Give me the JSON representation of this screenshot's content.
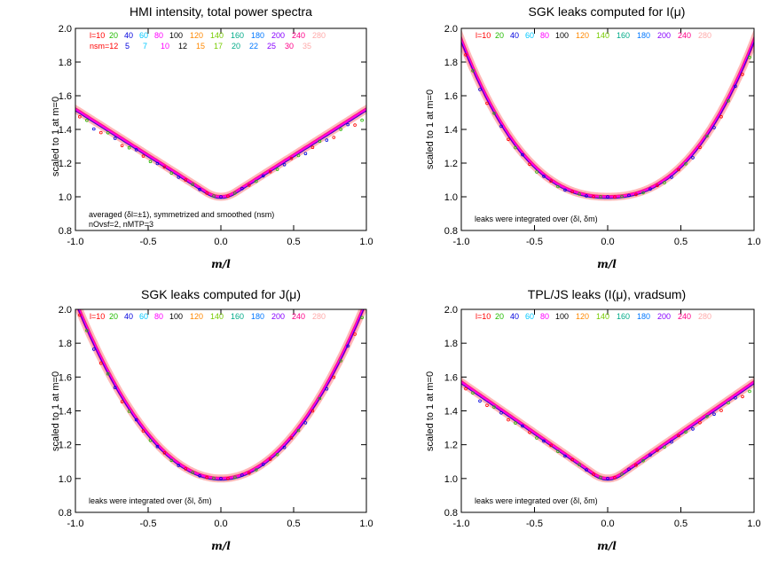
{
  "palette": {
    "l10": "#ff0000",
    "l20": "#22bb00",
    "l40": "#0000dd",
    "l60": "#00c8ff",
    "l80": "#ff00ff",
    "l100": "#000000",
    "l120": "#ff8800",
    "l140": "#77cc00",
    "l160": "#00aa88",
    "l180": "#0077ff",
    "l200": "#8800ff",
    "l240": "#ff0088",
    "l280": "#ffaaaa"
  },
  "chart_data": [
    {
      "type": "scatter",
      "title": "HMI intensity, total power spectra",
      "xlabel": "m/l",
      "ylabel": "scaled to 1 at m=0",
      "xlim": [
        -1.0,
        1.0
      ],
      "ylim": [
        0.8,
        2.0
      ],
      "xticks": [
        "-1.0",
        "-0.5",
        "0.0",
        "0.5",
        "1.0"
      ],
      "yticks": [
        "0.8",
        "1.0",
        "1.2",
        "1.4",
        "1.6",
        "1.8",
        "2.0"
      ],
      "legend_l_label": "l=10",
      "legend_l": [
        "20",
        "40",
        "60",
        "80",
        "100",
        "120",
        "140",
        "160",
        "180",
        "200",
        "240",
        "280"
      ],
      "legend_nsm_label": "nsm=12",
      "legend_nsm": [
        "5",
        "7",
        "10",
        "12",
        "15",
        "17",
        "20",
        "22",
        "25",
        "30",
        "35"
      ],
      "annotations": [
        "averaged (δl=±1), symmetrized and smoothed (nsm)",
        "nOvsf=2, nMTP=3"
      ],
      "curve": {
        "shape": "v",
        "edge_value": 1.52,
        "center_value": 1.0
      }
    },
    {
      "type": "scatter",
      "title": "SGK leaks computed for I(μ)",
      "xlabel": "m/l",
      "ylabel": "scaled to 1 at m=0",
      "xlim": [
        -1.0,
        1.0
      ],
      "ylim": [
        0.8,
        2.0
      ],
      "xticks": [
        "-1.0",
        "-0.5",
        "0.0",
        "0.5",
        "1.0"
      ],
      "yticks": [
        "0.8",
        "1.0",
        "1.2",
        "1.4",
        "1.6",
        "1.8",
        "2.0"
      ],
      "legend_l_label": "l=10",
      "legend_l": [
        "20",
        "40",
        "60",
        "80",
        "100",
        "120",
        "140",
        "160",
        "180",
        "200",
        "240",
        "280"
      ],
      "annotations": [
        "leaks were integrated over (δl, δm)"
      ],
      "curve": {
        "shape": "u",
        "edge_value": 1.93,
        "center_value": 1.0
      }
    },
    {
      "type": "scatter",
      "title": "SGK leaks computed for J(μ)",
      "xlabel": "m/l",
      "ylabel": "scaled to 1 at m=0",
      "xlim": [
        -1.0,
        1.0
      ],
      "ylim": [
        0.8,
        2.0
      ],
      "xticks": [
        "-1.0",
        "-0.5",
        "0.0",
        "0.5",
        "1.0"
      ],
      "yticks": [
        "0.8",
        "1.0",
        "1.2",
        "1.4",
        "1.6",
        "1.8",
        "2.0"
      ],
      "legend_l_label": "l=10",
      "legend_l": [
        "20",
        "40",
        "60",
        "80",
        "100",
        "120",
        "140",
        "160",
        "180",
        "200",
        "240",
        "280"
      ],
      "annotations": [
        "leaks were integrated over (δl, δm)"
      ],
      "curve": {
        "shape": "parabola",
        "edge_value": 2.05,
        "center_value": 1.0
      }
    },
    {
      "type": "scatter",
      "title": "TPL/JS leaks (I(μ), vradsum)",
      "xlabel": "m/l",
      "ylabel": "scaled to 1 at m=0",
      "xlim": [
        -1.0,
        1.0
      ],
      "ylim": [
        0.8,
        2.0
      ],
      "xticks": [
        "-1.0",
        "-0.5",
        "0.0",
        "0.5",
        "1.0"
      ],
      "yticks": [
        "0.8",
        "1.0",
        "1.2",
        "1.4",
        "1.6",
        "1.8",
        "2.0"
      ],
      "legend_l_label": "l=10",
      "legend_l": [
        "20",
        "40",
        "60",
        "80",
        "100",
        "120",
        "140",
        "160",
        "180",
        "200",
        "240",
        "280"
      ],
      "annotations": [
        "leaks were integrated over (δl, δm)"
      ],
      "curve": {
        "shape": "v",
        "edge_value": 1.57,
        "center_value": 1.0
      }
    }
  ]
}
